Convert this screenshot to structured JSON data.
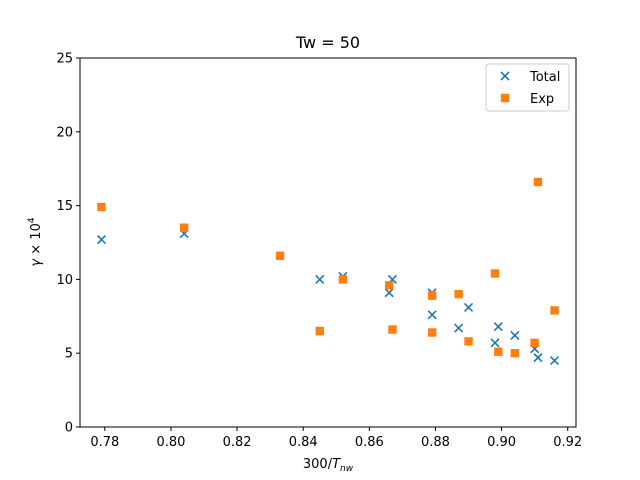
{
  "chart_data": {
    "type": "scatter",
    "title": "Tw = 50",
    "xlabel": {
      "prefix": "300/",
      "symbol": "T",
      "sub": "nw"
    },
    "ylabel": {
      "symbol": "γ",
      "times": "  × 10",
      "sup": "4"
    },
    "xlim": [
      0.7725,
      0.9225
    ],
    "ylim": [
      0,
      25
    ],
    "x_ticks": [
      0.78,
      0.8,
      0.82,
      0.84,
      0.86,
      0.88,
      0.9,
      0.92
    ],
    "x_tick_labels": [
      "0.78",
      "0.80",
      "0.82",
      "0.84",
      "0.86",
      "0.88",
      "0.90",
      "0.92"
    ],
    "y_ticks": [
      0,
      5,
      10,
      15,
      20,
      25
    ],
    "y_tick_labels": [
      "0",
      "5",
      "10",
      "15",
      "20",
      "25"
    ],
    "grid": false,
    "legend_position": "top-right",
    "series": [
      {
        "name": "Total",
        "marker": "x",
        "color": "#1f77b4",
        "points": [
          [
            0.779,
            12.7
          ],
          [
            0.804,
            13.1
          ],
          [
            0.845,
            10.0
          ],
          [
            0.852,
            10.2
          ],
          [
            0.866,
            9.1
          ],
          [
            0.867,
            10.0
          ],
          [
            0.879,
            9.1
          ],
          [
            0.879,
            7.6
          ],
          [
            0.887,
            6.7
          ],
          [
            0.89,
            8.1
          ],
          [
            0.898,
            5.7
          ],
          [
            0.899,
            6.8
          ],
          [
            0.904,
            6.2
          ],
          [
            0.91,
            5.3
          ],
          [
            0.911,
            4.7
          ],
          [
            0.916,
            4.5
          ]
        ]
      },
      {
        "name": "Exp",
        "marker": "square",
        "color": "#ff7f0e",
        "points": [
          [
            0.779,
            14.9
          ],
          [
            0.804,
            13.5
          ],
          [
            0.833,
            11.6
          ],
          [
            0.845,
            6.5
          ],
          [
            0.852,
            10.0
          ],
          [
            0.866,
            9.6
          ],
          [
            0.867,
            6.6
          ],
          [
            0.879,
            8.9
          ],
          [
            0.879,
            6.4
          ],
          [
            0.887,
            9.0
          ],
          [
            0.89,
            5.8
          ],
          [
            0.898,
            10.4
          ],
          [
            0.899,
            5.1
          ],
          [
            0.904,
            5.0
          ],
          [
            0.91,
            5.7
          ],
          [
            0.911,
            16.6
          ],
          [
            0.916,
            7.9
          ]
        ]
      }
    ]
  }
}
